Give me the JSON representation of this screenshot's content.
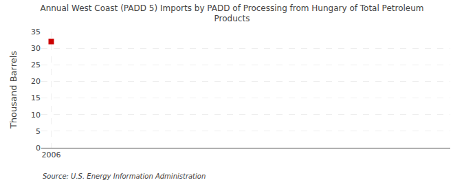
{
  "chart_data": {
    "type": "scatter",
    "title": "Annual West Coast (PADD 5) Imports by PADD of Processing from Hungary of Total Petroleum\nProducts",
    "ylabel": "Thousand Barrels",
    "annotation": "Source: U.S. Energy Information Administration",
    "x": [
      2006
    ],
    "values": [
      32
    ],
    "color": "#cc0000",
    "marker": "square",
    "xlim": [
      2005.4,
      2030
    ],
    "xticks": [
      2006
    ],
    "ylim": [
      0,
      35
    ],
    "yticks": [
      0,
      5,
      10,
      15,
      20,
      25,
      30,
      35
    ],
    "grid": true
  }
}
